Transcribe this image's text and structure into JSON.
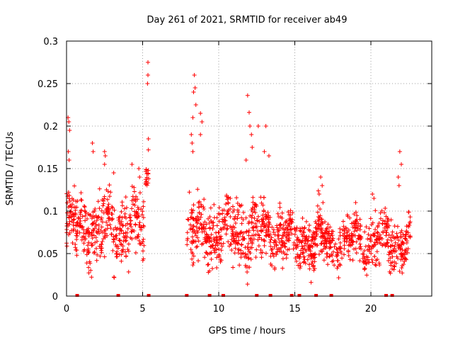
{
  "chart_data": {
    "type": "scatter",
    "title": "Day 261 of 2021, SRMTID for receiver ab49",
    "xlabel": "GPS time / hours",
    "ylabel": "SRMTID / TECUs",
    "xlim": [
      0,
      24
    ],
    "ylim": [
      0,
      0.3
    ],
    "xticks": [
      0,
      5,
      10,
      15,
      20
    ],
    "xtick_labels": [
      "0",
      "5",
      "10",
      "15",
      "20"
    ],
    "yticks": [
      0,
      0.05,
      0.1,
      0.15,
      0.2,
      0.25,
      0.3
    ],
    "ytick_labels": [
      "0",
      "0.05",
      "0.1",
      "0.15",
      "0.2",
      "0.25",
      "0.3"
    ],
    "grid": true,
    "marker": "+",
    "color": "#ff0000",
    "zero_value_markers_x": [
      0.7,
      3.4,
      5.4,
      7.9,
      9.4,
      10.3,
      12.5,
      13.4,
      14.8,
      15.3,
      16.4,
      17.4,
      21.0,
      21.4
    ],
    "segments": [
      {
        "start": 0.0,
        "end": 5.1,
        "base": 0.08,
        "spread": 0.025,
        "spikes": [
          [
            0.1,
            0.21
          ],
          [
            0.15,
            0.205
          ],
          [
            0.2,
            0.195
          ],
          [
            0.12,
            0.17
          ],
          [
            0.17,
            0.16
          ],
          [
            1.7,
            0.18
          ],
          [
            1.75,
            0.17
          ],
          [
            2.5,
            0.17
          ],
          [
            2.55,
            0.165
          ],
          [
            2.5,
            0.155
          ],
          [
            3.1,
            0.145
          ],
          [
            4.3,
            0.155
          ],
          [
            4.75,
            0.15
          ],
          [
            4.8,
            0.14
          ]
        ]
      },
      {
        "start": 5.2,
        "end": 5.4,
        "base": 0.2,
        "spread": 0.03,
        "spikes": [
          [
            5.35,
            0.275
          ],
          [
            5.35,
            0.26
          ],
          [
            5.32,
            0.25
          ],
          [
            5.38,
            0.185
          ],
          [
            5.38,
            0.172
          ],
          [
            5.4,
            0.138
          ]
        ]
      },
      {
        "start": 7.9,
        "end": 14.1,
        "base": 0.075,
        "spread": 0.025,
        "spikes": [
          [
            8.4,
            0.26
          ],
          [
            8.45,
            0.245
          ],
          [
            8.35,
            0.24
          ],
          [
            8.5,
            0.225
          ],
          [
            8.3,
            0.21
          ],
          [
            8.8,
            0.215
          ],
          [
            8.9,
            0.205
          ],
          [
            8.8,
            0.19
          ],
          [
            8.2,
            0.19
          ],
          [
            8.25,
            0.18
          ],
          [
            8.3,
            0.17
          ],
          [
            11.9,
            0.236
          ],
          [
            12.0,
            0.216
          ],
          [
            12.15,
            0.19
          ],
          [
            12.05,
            0.2
          ],
          [
            12.6,
            0.2
          ],
          [
            13.1,
            0.2
          ],
          [
            13.0,
            0.17
          ],
          [
            13.3,
            0.165
          ],
          [
            11.8,
            0.16
          ],
          [
            12.2,
            0.175
          ]
        ]
      },
      {
        "start": 14.1,
        "end": 22.6,
        "base": 0.065,
        "spread": 0.02,
        "spikes": [
          [
            16.7,
            0.14
          ],
          [
            16.8,
            0.13
          ],
          [
            16.6,
            0.12
          ],
          [
            16.85,
            0.11
          ],
          [
            21.9,
            0.17
          ],
          [
            22.0,
            0.155
          ],
          [
            21.8,
            0.14
          ],
          [
            21.85,
            0.13
          ],
          [
            20.1,
            0.12
          ],
          [
            20.2,
            0.115
          ],
          [
            19.0,
            0.11
          ]
        ]
      }
    ]
  }
}
